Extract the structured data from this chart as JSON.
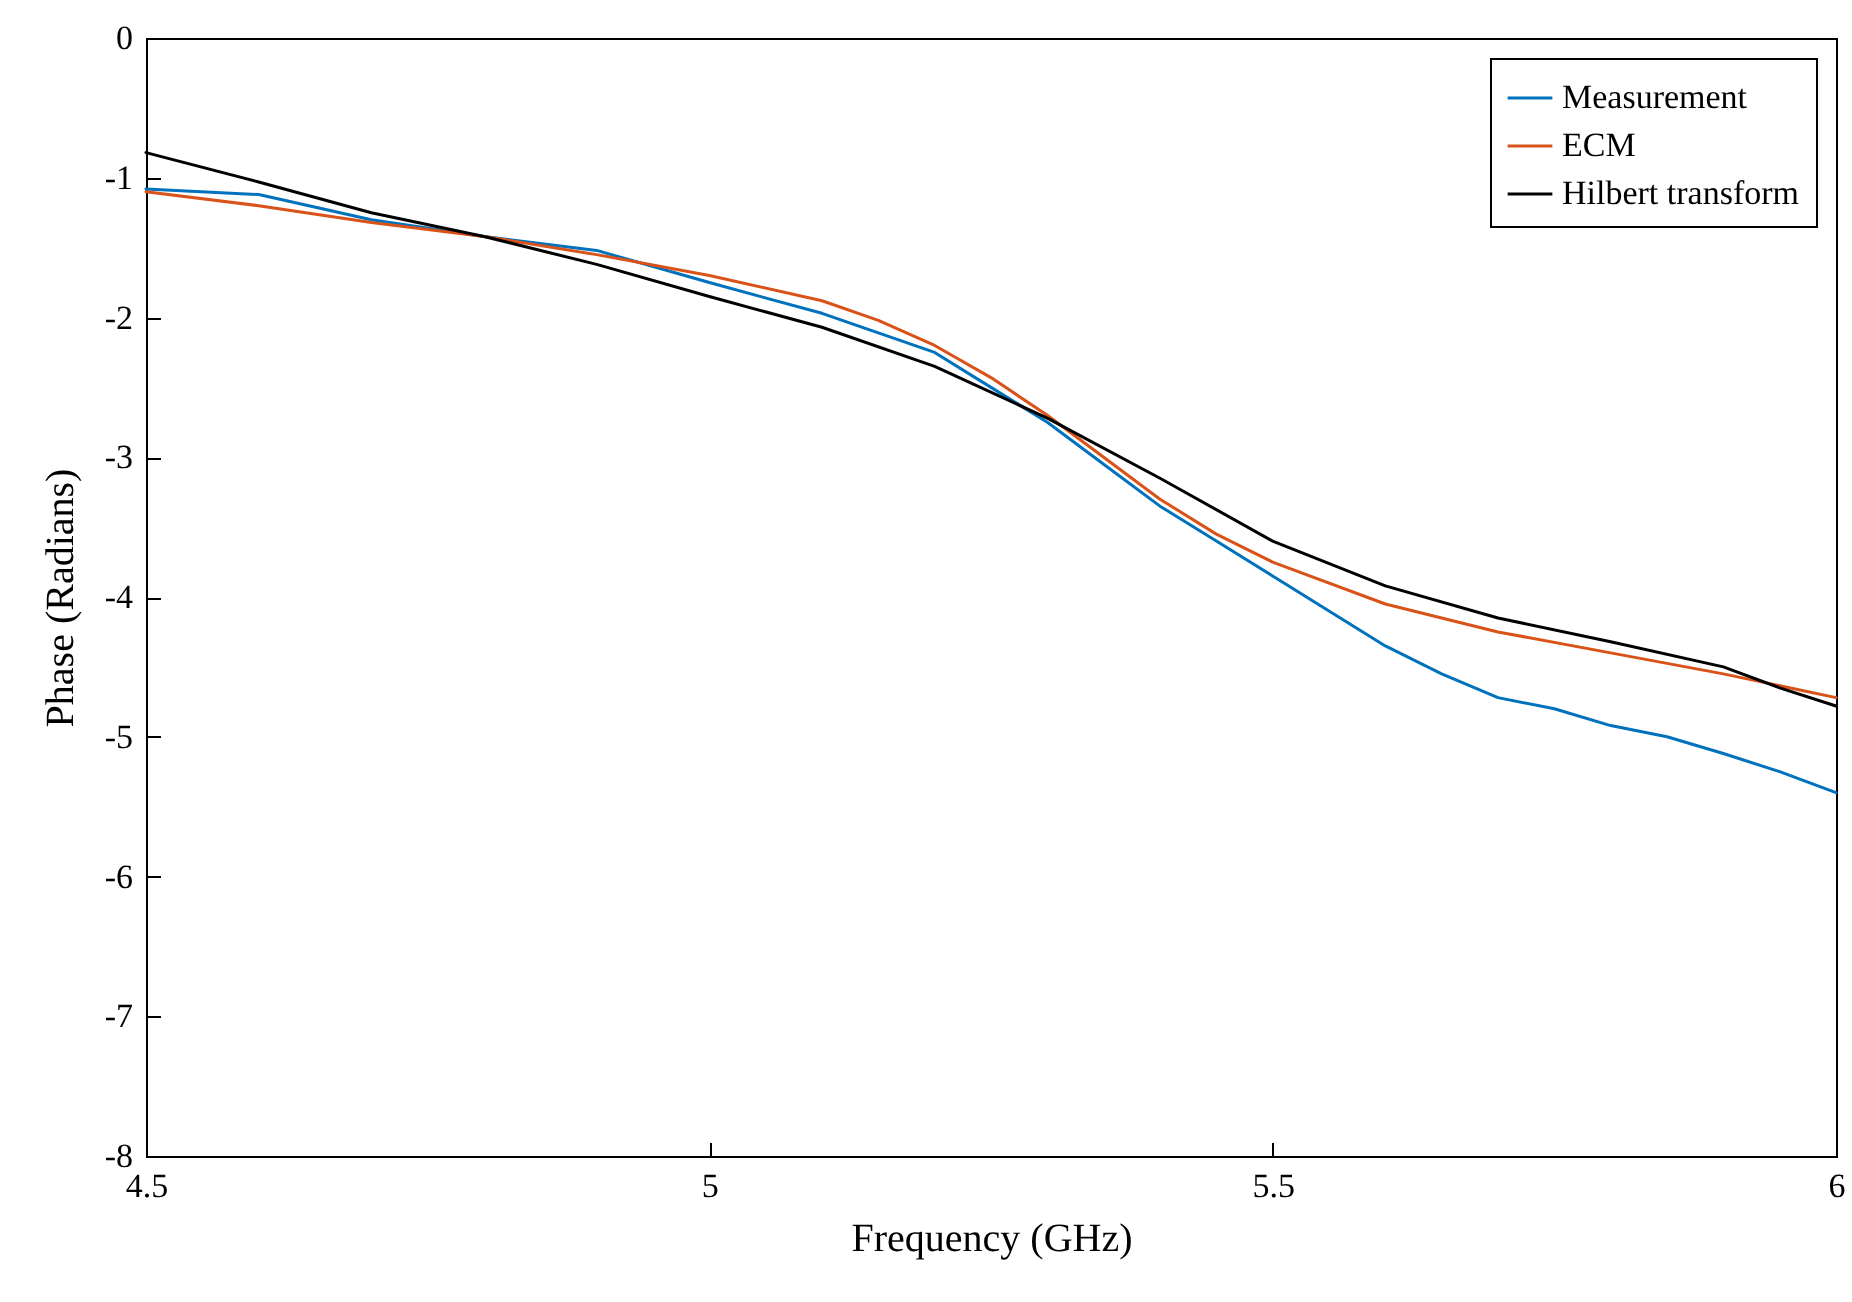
{
  "chart_data": {
    "type": "line",
    "xlabel": "Frequency (GHz)",
    "ylabel": "Phase (Radians)",
    "xlim": [
      4.5,
      6
    ],
    "xticks": [
      4.5,
      5,
      5.5,
      6
    ],
    "ylim": [
      -8,
      0
    ],
    "yticks": [
      -8,
      -7,
      -6,
      -5,
      -4,
      -3,
      -2,
      -1,
      0
    ],
    "grid": false,
    "legend": "top right",
    "line_style": "solid",
    "marker": "none",
    "series": [
      {
        "name": "Measurement",
        "color": "#0072bd",
        "x": [
          4.5,
          4.6,
          4.7,
          4.8,
          4.9,
          5.0,
          5.1,
          5.2,
          5.25,
          5.3,
          5.35,
          5.4,
          5.45,
          5.5,
          5.55,
          5.6,
          5.65,
          5.7,
          5.75,
          5.8,
          5.85,
          5.9,
          5.95,
          6.0
        ],
        "values": [
          -1.08,
          -1.12,
          -1.3,
          -1.42,
          -1.52,
          -1.75,
          -1.97,
          -2.25,
          -2.5,
          -2.75,
          -3.05,
          -3.35,
          -3.6,
          -3.85,
          -4.1,
          -4.35,
          -4.55,
          -4.72,
          -4.8,
          -4.92,
          -5.0,
          -5.12,
          -5.25,
          -5.4
        ]
      },
      {
        "name": "ECM",
        "color": "#d95319",
        "x": [
          4.5,
          4.6,
          4.7,
          4.8,
          4.9,
          5.0,
          5.1,
          5.15,
          5.2,
          5.25,
          5.3,
          5.35,
          5.4,
          5.45,
          5.5,
          5.6,
          5.7,
          5.8,
          5.9,
          6.0
        ],
        "values": [
          -1.1,
          -1.2,
          -1.32,
          -1.42,
          -1.55,
          -1.7,
          -1.88,
          -2.02,
          -2.2,
          -2.43,
          -2.7,
          -3.0,
          -3.3,
          -3.55,
          -3.75,
          -4.05,
          -4.25,
          -4.4,
          -4.55,
          -4.72
        ]
      },
      {
        "name": "Hilbert transform",
        "color": "#000000",
        "x": [
          4.5,
          4.6,
          4.7,
          4.8,
          4.9,
          5.0,
          5.1,
          5.2,
          5.3,
          5.4,
          5.5,
          5.6,
          5.7,
          5.8,
          5.9,
          5.95,
          6.0
        ],
        "values": [
          -0.82,
          -1.03,
          -1.25,
          -1.42,
          -1.62,
          -1.85,
          -2.07,
          -2.35,
          -2.72,
          -3.15,
          -3.6,
          -3.92,
          -4.15,
          -4.32,
          -4.5,
          -4.65,
          -4.78
        ]
      }
    ]
  }
}
